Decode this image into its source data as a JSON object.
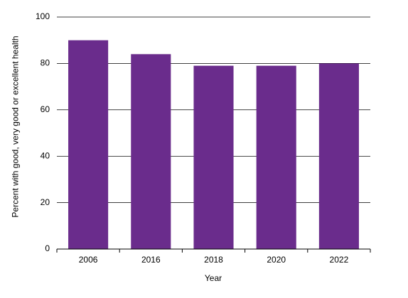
{
  "chart_data": {
    "type": "bar",
    "y_label": "Percent with good, very good or excellent health",
    "x_label": "Year",
    "categories": [
      "2006",
      "2016",
      "2018",
      "2020",
      "2022"
    ],
    "values": [
      90,
      84,
      79,
      79,
      80
    ],
    "color": "#6a2c8c",
    "ylim": [
      0,
      100
    ],
    "yticks": [
      0,
      20,
      40,
      60,
      80,
      100
    ],
    "grid": true
  }
}
